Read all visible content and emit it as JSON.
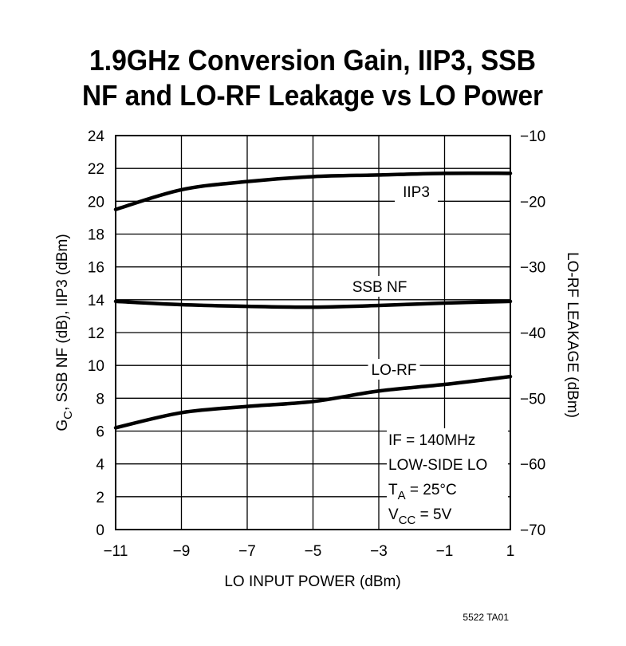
{
  "chart_data": {
    "type": "line",
    "title_lines": [
      "1.9GHz Conversion Gain, IIP3, SSB",
      "NF and LO-RF Leakage vs LO Power"
    ],
    "xlabel": "LO INPUT POWER (dBm)",
    "ylabel": {
      "main": "G",
      "sub": "C",
      "rest": ", SSB NF (dB), IIP3 (dBm)"
    },
    "y2label": "LO-RF LEAKAGE (dBm)",
    "xlim": [
      -11,
      1
    ],
    "ylim": [
      0,
      24
    ],
    "y2lim": [
      -70,
      -10
    ],
    "grid": true,
    "xticks": [
      "−11",
      "−9",
      "−7",
      "−5",
      "−3",
      "−1",
      "1"
    ],
    "yticks": [
      "0",
      "2",
      "4",
      "6",
      "8",
      "10",
      "12",
      "14",
      "16",
      "18",
      "20",
      "22",
      "24"
    ],
    "y2ticks": [
      "−70",
      "−60",
      "−50",
      "−40",
      "−30",
      "−20",
      "−10"
    ],
    "x": [
      -11,
      -9,
      -7,
      -5,
      -3,
      -1,
      1
    ],
    "series": [
      {
        "name": "IIP3",
        "axis": "left",
        "values": [
          19.5,
          20.7,
          21.2,
          21.5,
          21.6,
          21.7,
          21.7
        ]
      },
      {
        "name": "SSB NF",
        "axis": "left",
        "values": [
          13.9,
          13.7,
          13.6,
          13.55,
          13.65,
          13.8,
          13.9
        ]
      },
      {
        "name": "LO-RF",
        "axis": "right",
        "values": [
          -54.5,
          -52.2,
          -51.25,
          -50.5,
          -48.9,
          -47.9,
          -46.7
        ]
      }
    ],
    "conditions": [
      {
        "main": "IF = 140MHz"
      },
      {
        "main": "LOW-SIDE LO"
      },
      {
        "main": "T",
        "sub": "A",
        "rest": " = 25°C"
      },
      {
        "main": "V",
        "sub": "CC",
        "rest": " = 5V"
      }
    ],
    "footnote": "5522 TA01"
  }
}
